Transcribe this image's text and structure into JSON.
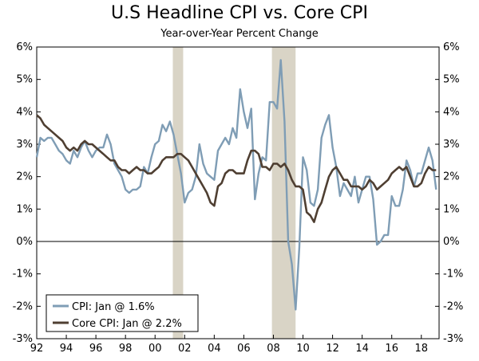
{
  "chart_data": {
    "type": "line",
    "title": "U.S Headline CPI vs. Core CPI",
    "subtitle": "Year-over-Year Percent Change",
    "xlabel": "",
    "ylabel": "",
    "xlim": [
      1992.0,
      2019.2
    ],
    "ylim": [
      -3,
      6
    ],
    "x_ticks": [
      1992,
      1994,
      1996,
      1998,
      2000,
      2002,
      2004,
      2006,
      2008,
      2010,
      2012,
      2014,
      2016,
      2018
    ],
    "x_tick_labels": [
      "92",
      "94",
      "96",
      "98",
      "00",
      "02",
      "04",
      "06",
      "08",
      "10",
      "12",
      "14",
      "16",
      "18"
    ],
    "y_ticks": [
      -3,
      -2,
      -1,
      0,
      1,
      2,
      3,
      4,
      5,
      6
    ],
    "y_tick_labels": [
      "-3%",
      "-2%",
      "-1%",
      "0%",
      "1%",
      "2%",
      "3%",
      "4%",
      "5%",
      "6%"
    ],
    "grid": false,
    "legend_position": "bottom-left",
    "recession_color": "#d9d4c6",
    "recessions": [
      [
        2001.2,
        2001.9
      ],
      [
        2007.9,
        2009.5
      ]
    ],
    "series": [
      {
        "name": "CPI: Jan @ 1.6%",
        "color": "#7f9db5",
        "x": [
          1992.0,
          1992.25,
          1992.5,
          1992.75,
          1993.0,
          1993.25,
          1993.5,
          1993.75,
          1994.0,
          1994.25,
          1994.5,
          1994.75,
          1995.0,
          1995.25,
          1995.5,
          1995.75,
          1996.0,
          1996.25,
          1996.5,
          1996.75,
          1997.0,
          1997.25,
          1997.5,
          1997.75,
          1998.0,
          1998.25,
          1998.5,
          1998.75,
          1999.0,
          1999.25,
          1999.5,
          1999.75,
          2000.0,
          2000.25,
          2000.5,
          2000.75,
          2001.0,
          2001.25,
          2001.5,
          2001.75,
          2002.0,
          2002.25,
          2002.5,
          2002.75,
          2003.0,
          2003.25,
          2003.5,
          2003.75,
          2004.0,
          2004.25,
          2004.5,
          2004.75,
          2005.0,
          2005.25,
          2005.5,
          2005.75,
          2006.0,
          2006.25,
          2006.5,
          2006.75,
          2007.0,
          2007.25,
          2007.5,
          2007.75,
          2008.0,
          2008.25,
          2008.5,
          2008.75,
          2009.0,
          2009.25,
          2009.5,
          2009.75,
          2010.0,
          2010.25,
          2010.5,
          2010.75,
          2011.0,
          2011.25,
          2011.5,
          2011.75,
          2012.0,
          2012.25,
          2012.5,
          2012.75,
          2013.0,
          2013.25,
          2013.5,
          2013.75,
          2014.0,
          2014.25,
          2014.5,
          2014.75,
          2015.0,
          2015.25,
          2015.5,
          2015.75,
          2016.0,
          2016.25,
          2016.5,
          2016.75,
          2017.0,
          2017.25,
          2017.5,
          2017.75,
          2018.0,
          2018.25,
          2018.5,
          2018.75,
          2019.0
        ],
        "values": [
          2.6,
          3.2,
          3.1,
          3.2,
          3.2,
          3.0,
          2.8,
          2.7,
          2.5,
          2.4,
          2.8,
          2.6,
          2.9,
          3.1,
          2.8,
          2.6,
          2.8,
          2.9,
          2.9,
          3.3,
          3.0,
          2.4,
          2.2,
          2.0,
          1.6,
          1.5,
          1.6,
          1.6,
          1.7,
          2.3,
          2.1,
          2.6,
          3.0,
          3.1,
          3.6,
          3.4,
          3.7,
          3.3,
          2.7,
          2.1,
          1.2,
          1.5,
          1.6,
          2.0,
          3.0,
          2.4,
          2.1,
          2.0,
          1.9,
          2.8,
          3.0,
          3.2,
          3.0,
          3.5,
          3.2,
          4.7,
          4.0,
          3.5,
          4.1,
          1.3,
          2.1,
          2.6,
          2.5,
          4.3,
          4.3,
          4.1,
          5.6,
          3.7,
          0.0,
          -0.7,
          -2.1,
          -0.2,
          2.6,
          2.2,
          1.2,
          1.1,
          1.6,
          3.2,
          3.6,
          3.9,
          2.9,
          2.3,
          1.4,
          1.8,
          1.6,
          1.4,
          2.0,
          1.2,
          1.6,
          2.0,
          2.0,
          1.3,
          -0.1,
          0.0,
          0.2,
          0.2,
          1.4,
          1.1,
          1.1,
          1.6,
          2.5,
          2.2,
          1.7,
          2.1,
          2.1,
          2.5,
          2.9,
          2.5,
          1.6
        ]
      },
      {
        "name": "Core CPI: Jan @ 2.2%",
        "color": "#4f3f32",
        "x": [
          1992.0,
          1992.25,
          1992.5,
          1992.75,
          1993.0,
          1993.25,
          1993.5,
          1993.75,
          1994.0,
          1994.25,
          1994.5,
          1994.75,
          1995.0,
          1995.25,
          1995.5,
          1995.75,
          1996.0,
          1996.25,
          1996.5,
          1996.75,
          1997.0,
          1997.25,
          1997.5,
          1997.75,
          1998.0,
          1998.25,
          1998.5,
          1998.75,
          1999.0,
          1999.25,
          1999.5,
          1999.75,
          2000.0,
          2000.25,
          2000.5,
          2000.75,
          2001.0,
          2001.25,
          2001.5,
          2001.75,
          2002.0,
          2002.25,
          2002.5,
          2002.75,
          2003.0,
          2003.25,
          2003.5,
          2003.75,
          2004.0,
          2004.25,
          2004.5,
          2004.75,
          2005.0,
          2005.25,
          2005.5,
          2005.75,
          2006.0,
          2006.25,
          2006.5,
          2006.75,
          2007.0,
          2007.25,
          2007.5,
          2007.75,
          2008.0,
          2008.25,
          2008.5,
          2008.75,
          2009.0,
          2009.25,
          2009.5,
          2009.75,
          2010.0,
          2010.25,
          2010.5,
          2010.75,
          2011.0,
          2011.25,
          2011.5,
          2011.75,
          2012.0,
          2012.25,
          2012.5,
          2012.75,
          2013.0,
          2013.25,
          2013.5,
          2013.75,
          2014.0,
          2014.25,
          2014.5,
          2014.75,
          2015.0,
          2015.25,
          2015.5,
          2015.75,
          2016.0,
          2016.25,
          2016.5,
          2016.75,
          2017.0,
          2017.25,
          2017.5,
          2017.75,
          2018.0,
          2018.25,
          2018.5,
          2018.75,
          2019.0
        ],
        "values": [
          3.9,
          3.8,
          3.6,
          3.5,
          3.4,
          3.3,
          3.2,
          3.1,
          2.9,
          2.8,
          2.9,
          2.8,
          3.0,
          3.1,
          3.0,
          3.0,
          2.9,
          2.8,
          2.7,
          2.6,
          2.5,
          2.5,
          2.3,
          2.2,
          2.2,
          2.1,
          2.2,
          2.3,
          2.2,
          2.2,
          2.1,
          2.1,
          2.2,
          2.3,
          2.5,
          2.6,
          2.6,
          2.6,
          2.7,
          2.7,
          2.6,
          2.5,
          2.3,
          2.1,
          1.9,
          1.7,
          1.5,
          1.2,
          1.1,
          1.7,
          1.8,
          2.1,
          2.2,
          2.2,
          2.1,
          2.1,
          2.1,
          2.5,
          2.8,
          2.8,
          2.7,
          2.3,
          2.3,
          2.2,
          2.4,
          2.4,
          2.3,
          2.4,
          2.2,
          1.9,
          1.7,
          1.7,
          1.6,
          0.9,
          0.8,
          0.6,
          1.0,
          1.2,
          1.6,
          2.0,
          2.2,
          2.3,
          2.1,
          1.9,
          1.9,
          1.7,
          1.7,
          1.7,
          1.6,
          1.7,
          1.9,
          1.8,
          1.6,
          1.7,
          1.8,
          1.9,
          2.1,
          2.2,
          2.3,
          2.2,
          2.3,
          2.0,
          1.7,
          1.7,
          1.8,
          2.1,
          2.3,
          2.2,
          2.2
        ]
      }
    ]
  }
}
